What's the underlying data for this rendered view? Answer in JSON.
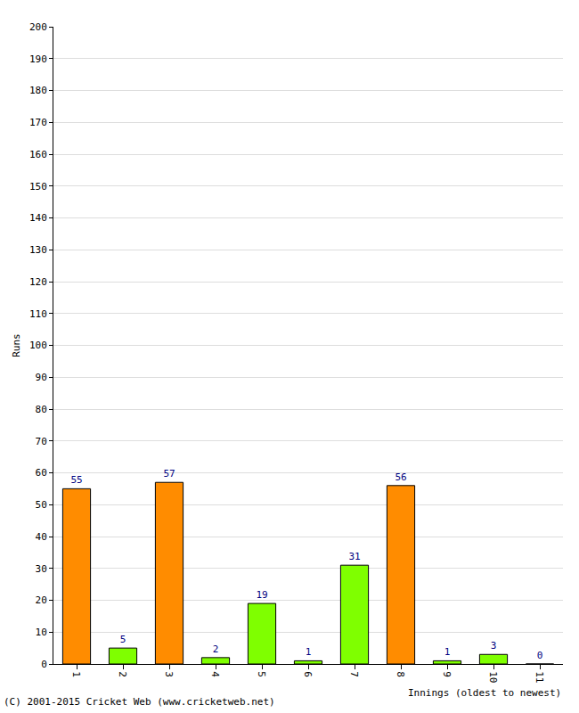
{
  "chart_data": {
    "type": "bar",
    "x_label": "Innings (oldest to newest)",
    "y_label": "Runs",
    "annotations": [
      "(C) 2001-2015 Cricket Web (www.cricketweb.net)"
    ],
    "categories": [
      "1",
      "2",
      "3",
      "4",
      "5",
      "6",
      "7",
      "8",
      "9",
      "10",
      "11"
    ],
    "values": [
      55,
      5,
      57,
      2,
      19,
      1,
      31,
      56,
      1,
      3,
      0
    ],
    "colors": [
      "#ff8c00",
      "#7fff00",
      "#ff8c00",
      "#7fff00",
      "#7fff00",
      "#7fff00",
      "#7fff00",
      "#ff8c00",
      "#7fff00",
      "#7fff00",
      "#7fff00"
    ],
    "ylim": [
      0,
      200
    ],
    "yticks": [
      0,
      10,
      20,
      30,
      40,
      50,
      60,
      70,
      80,
      90,
      100,
      110,
      120,
      130,
      140,
      150,
      160,
      170,
      180,
      190,
      200
    ],
    "grid": true,
    "data_labels": true
  }
}
